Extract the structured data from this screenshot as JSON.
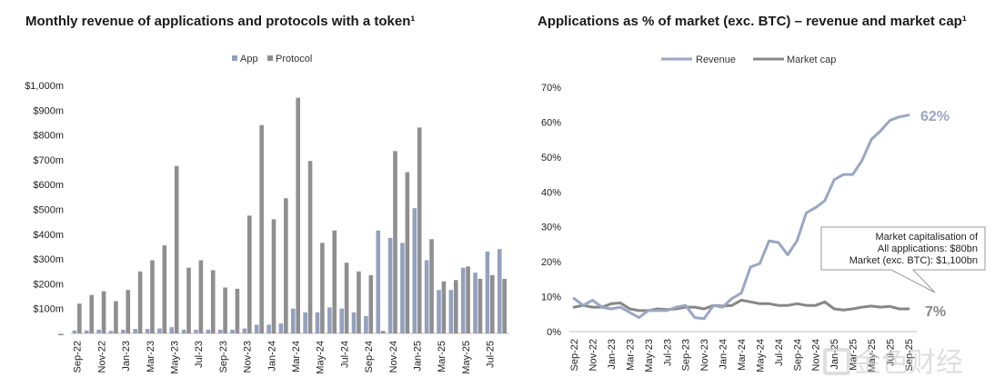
{
  "charts": {
    "left_title": "Monthly revenue of applications and protocols with a token¹",
    "right_title": "Applications as % of market (exc. BTC) – revenue and market cap¹"
  },
  "colors": {
    "app": "#94a1be",
    "protocol": "#8f8f8f",
    "revenue": "#9aa6c4",
    "marketcap": "#878787"
  },
  "watermark": {
    "text": "金色财经",
    "icon": "jinse-logo-icon"
  },
  "chart_data": [
    {
      "type": "bar",
      "title": "Monthly revenue of applications and protocols with a token¹",
      "ylim": [
        0,
        1000
      ],
      "yticks": [
        "–",
        "$100m",
        "$200m",
        "$300m",
        "$400m",
        "$500m",
        "$600m",
        "$700m",
        "$800m",
        "$900m",
        "$1,000m"
      ],
      "categories": [
        "Sep-22",
        "Oct-22",
        "Nov-22",
        "Dec-22",
        "Jan-23",
        "Feb-23",
        "Mar-23",
        "Apr-23",
        "May-23",
        "Jun-23",
        "Jul-23",
        "Aug-23",
        "Sep-23",
        "Oct-23",
        "Nov-23",
        "Dec-23",
        "Jan-24",
        "Feb-24",
        "Mar-24",
        "Apr-24",
        "May-24",
        "Jun-24",
        "Jul-24",
        "Aug-24",
        "Sep-24",
        "Oct-24",
        "Nov-24",
        "Dec-24",
        "Jan-25",
        "Feb-25",
        "Mar-25",
        "Apr-25",
        "May-25",
        "Jun-25",
        "Jul-25",
        "Aug-25",
        "Sep-25"
      ],
      "tick_labels": [
        "Sep-22",
        "Nov-22",
        "Jan-23",
        "Mar-23",
        "May-23",
        "Jul-23",
        "Sep-23",
        "Nov-23",
        "Jan-24",
        "Mar-24",
        "May-24",
        "Jul-24",
        "Sep-24",
        "Nov-24",
        "Jan-25",
        "Mar-25",
        "May-25",
        "Jul-25",
        "Sep-25"
      ],
      "legend": "top",
      "series": [
        {
          "name": "App",
          "values": [
            12,
            12,
            15,
            10,
            15,
            18,
            18,
            20,
            25,
            15,
            15,
            15,
            15,
            15,
            20,
            35,
            35,
            40,
            100,
            85,
            85,
            105,
            100,
            85,
            70,
            415,
            385,
            365,
            505,
            295,
            175,
            175,
            265,
            245,
            330,
            340,
            175
          ]
        },
        {
          "name": "Protocol",
          "values": [
            120,
            155,
            170,
            130,
            175,
            250,
            295,
            355,
            675,
            265,
            295,
            255,
            185,
            180,
            475,
            840,
            460,
            545,
            950,
            695,
            365,
            415,
            285,
            250,
            235,
            10,
            735,
            650,
            830,
            380,
            210,
            215,
            270,
            220,
            235,
            220,
            110
          ]
        }
      ]
    },
    {
      "type": "line",
      "title": "Applications as % of market (exc. BTC) – revenue and market cap¹",
      "ylim": [
        0,
        70
      ],
      "yticks": [
        "0%",
        "10%",
        "20%",
        "30%",
        "40%",
        "50%",
        "60%",
        "70%"
      ],
      "x": [
        "Sep-22",
        "Oct-22",
        "Nov-22",
        "Dec-22",
        "Jan-23",
        "Feb-23",
        "Mar-23",
        "Apr-23",
        "May-23",
        "Jun-23",
        "Jul-23",
        "Aug-23",
        "Sep-23",
        "Oct-23",
        "Nov-23",
        "Dec-23",
        "Jan-24",
        "Feb-24",
        "Mar-24",
        "Apr-24",
        "May-24",
        "Jun-24",
        "Jul-24",
        "Aug-24",
        "Sep-24",
        "Oct-24",
        "Nov-24",
        "Dec-24",
        "Jan-25",
        "Feb-25",
        "Mar-25",
        "Apr-25",
        "May-25",
        "Jun-25",
        "Jul-25",
        "Aug-25",
        "Sep-25"
      ],
      "tick_labels": [
        "Sep-22",
        "Nov-22",
        "Jan-23",
        "Mar-23",
        "May-23",
        "Jul-23",
        "Sep-23",
        "Nov-23",
        "Jan-24",
        "Mar-24",
        "May-24",
        "Jul-24",
        "Sep-24",
        "Nov-24",
        "Jan-25",
        "Mar-25",
        "May-25",
        "Jul-25",
        "Sep-25"
      ],
      "legend": "top",
      "series": [
        {
          "name": "Revenue",
          "values": [
            9.5,
            7.5,
            9,
            7,
            6.5,
            7,
            5.5,
            4,
            6,
            6,
            6,
            7,
            7.5,
            4,
            3.7,
            7.5,
            7,
            9.5,
            11,
            18.5,
            19.5,
            26,
            25.5,
            22,
            26,
            34,
            35.5,
            37.5,
            43.5,
            45,
            45,
            49,
            55,
            57.5,
            60.5,
            61.5,
            62
          ]
        },
        {
          "name": "Market cap",
          "values": [
            7,
            7.5,
            7,
            7,
            8,
            8.2,
            6.5,
            6,
            6,
            6.5,
            6.3,
            6.5,
            7,
            7,
            6.5,
            7.5,
            7.3,
            7.5,
            9,
            8.5,
            8,
            8,
            7.5,
            7.5,
            8,
            7.5,
            7.5,
            8.5,
            6.5,
            6.2,
            6.5,
            7,
            7.3,
            7,
            7.2,
            6.5,
            6.5
          ]
        }
      ],
      "end_labels": {
        "revenue": "62%",
        "marketcap": "7%"
      },
      "annotation": [
        "Market capitalisation of",
        "All applications: $80bn",
        "Market (exc. BTC): $1,100bn"
      ]
    }
  ]
}
